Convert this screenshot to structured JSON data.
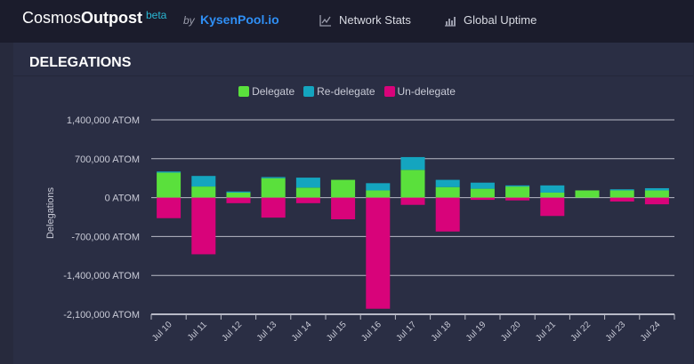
{
  "header": {
    "brand_part1": "Cosmos",
    "brand_part2": "Outpost",
    "beta": "beta",
    "by": "by",
    "pool": "KysenPool.io",
    "nav": [
      {
        "label": "Network Stats",
        "icon": "line-chart-icon"
      },
      {
        "label": "Global Uptime",
        "icon": "bar-chart-icon"
      }
    ]
  },
  "panel": {
    "title": "DELEGATIONS"
  },
  "colors": {
    "delegate": "#5ae03c",
    "redelegate": "#14a5bf",
    "undelegate": "#d8037a"
  },
  "chart_data": {
    "type": "bar",
    "stacked": true,
    "title": "",
    "ylabel": "Delegations",
    "xlabel": "",
    "ylim": [
      -2100000,
      1400000
    ],
    "yticks": [
      1400000,
      700000,
      0,
      -700000,
      -1400000,
      -2100000
    ],
    "ytick_labels": [
      "1,400,000 ATOM",
      "700,000 ATOM",
      "0 ATOM",
      "-700,000 ATOM",
      "-1,400,000 ATOM",
      "-2,100,000 ATOM"
    ],
    "categories": [
      "Jul 10",
      "Jul 11",
      "Jul 12",
      "Jul 13",
      "Jul 14",
      "Jul 15",
      "Jul 16",
      "Jul 17",
      "Jul 18",
      "Jul 19",
      "Jul 20",
      "Jul 21",
      "Jul 22",
      "Jul 23",
      "Jul 24"
    ],
    "series": [
      {
        "name": "Delegate",
        "values": [
          450000,
          200000,
          90000,
          350000,
          180000,
          320000,
          130000,
          500000,
          190000,
          160000,
          200000,
          90000,
          130000,
          130000,
          130000
        ]
      },
      {
        "name": "Re-delegate",
        "values": [
          20000,
          190000,
          20000,
          20000,
          180000,
          0,
          130000,
          230000,
          130000,
          110000,
          20000,
          130000,
          0,
          20000,
          40000
        ]
      },
      {
        "name": "Un-delegate",
        "values": [
          -370000,
          -1020000,
          -100000,
          -360000,
          -100000,
          -390000,
          -2000000,
          -130000,
          -610000,
          -40000,
          -50000,
          -330000,
          0,
          -70000,
          -120000
        ]
      }
    ],
    "legend": [
      "Delegate",
      "Re-delegate",
      "Un-delegate"
    ],
    "legend_position": "top-center",
    "grid": true
  }
}
